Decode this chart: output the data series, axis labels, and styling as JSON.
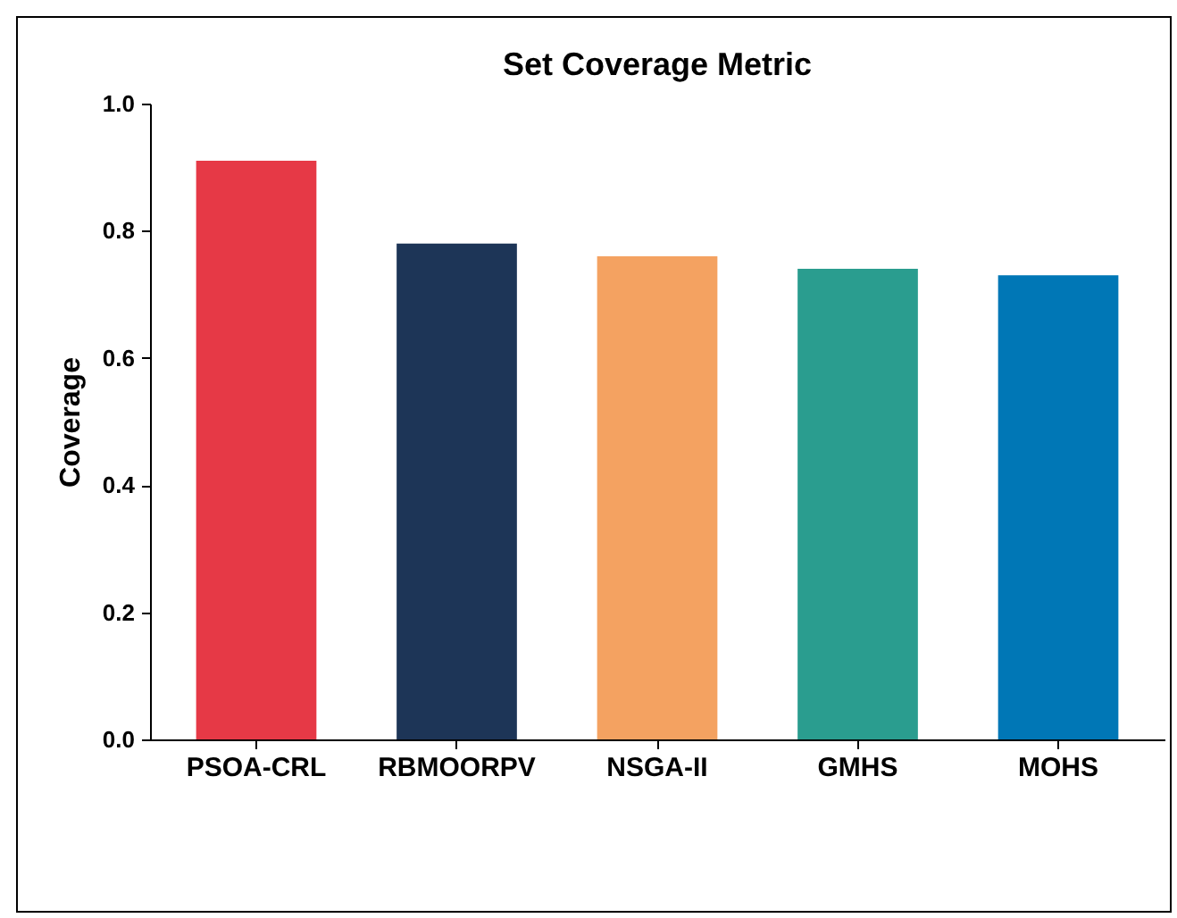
{
  "chart_data": {
    "type": "bar",
    "title": "Set Coverage Metric",
    "ylabel": "Coverage",
    "categories": [
      "PSOA-CRL",
      "RBMOORPV",
      "NSGA-II",
      "GMHS",
      "MOHS"
    ],
    "values": [
      0.91,
      0.78,
      0.76,
      0.74,
      0.73
    ],
    "colors": [
      "#e63946",
      "#1d3557",
      "#f4a261",
      "#2a9d8f",
      "#0077b6"
    ],
    "ylim": [
      0,
      1
    ],
    "yticks": [
      {
        "value": 0,
        "label": "0.0"
      },
      {
        "value": 0.2,
        "label": "0.2"
      },
      {
        "value": 0.4,
        "label": "0.4"
      },
      {
        "value": 0.6,
        "label": "0.6"
      },
      {
        "value": 0.8,
        "label": "0.8"
      },
      {
        "value": 1,
        "label": "1.0"
      }
    ],
    "grid": false,
    "legend": false
  }
}
